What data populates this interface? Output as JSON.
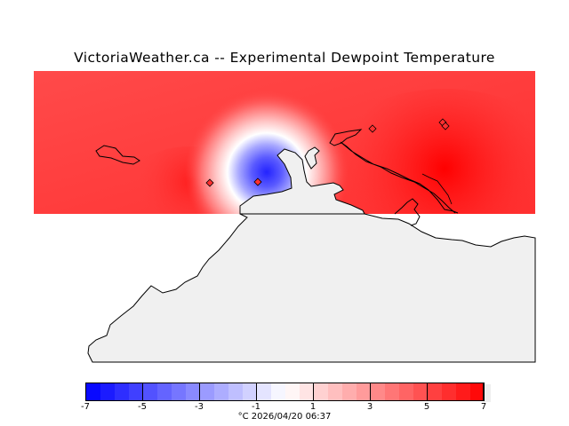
{
  "title": "VictoriaWeather.ca -- Experimental Dewpoint Temperature",
  "map": {
    "land_color": "#f0f0f0",
    "coast_color": "#000000",
    "station_marker": "diamond"
  },
  "colorbar": {
    "min": -7,
    "max": 7,
    "step": 0.5,
    "cold_color": "#0000ff",
    "warm_color": "#ff0000",
    "mid_color": "#ffffff",
    "labels": [
      "-7",
      "-5",
      "-3",
      "-1",
      "1",
      "3",
      "5",
      "7"
    ]
  },
  "caption": "°C  2026/04/20 06:37"
}
